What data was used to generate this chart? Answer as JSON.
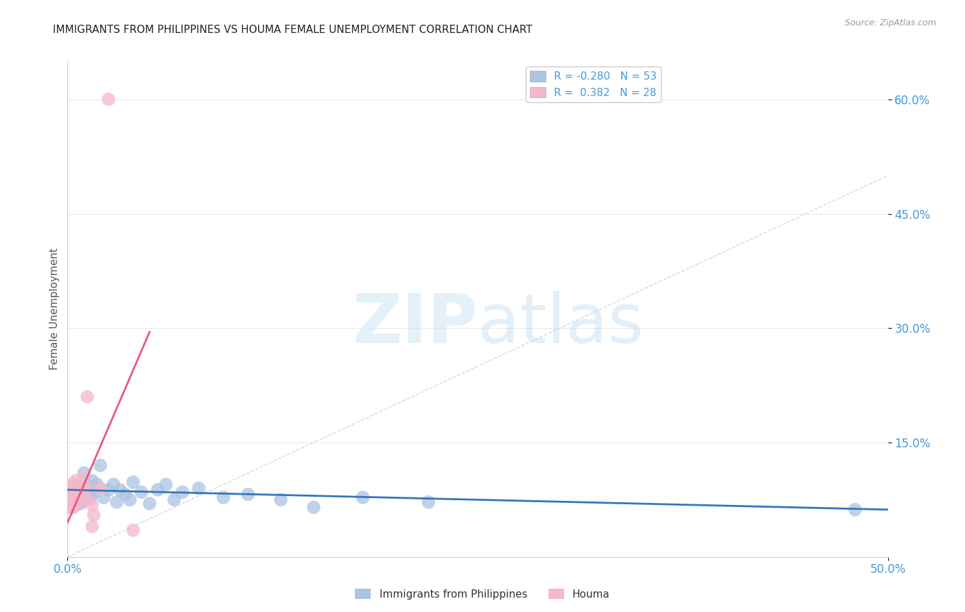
{
  "title": "IMMIGRANTS FROM PHILIPPINES VS HOUMA FEMALE UNEMPLOYMENT CORRELATION CHART",
  "source": "Source: ZipAtlas.com",
  "ylabel": "Female Unemployment",
  "xlim": [
    0.0,
    0.5
  ],
  "ylim": [
    0.0,
    0.65
  ],
  "yticks": [
    0.15,
    0.3,
    0.45,
    0.6
  ],
  "ytick_labels": [
    "15.0%",
    "30.0%",
    "45.0%",
    "60.0%"
  ],
  "xtick_labels": [
    "0.0%",
    "50.0%"
  ],
  "xtick_positions": [
    0.0,
    0.5
  ],
  "blue_R": -0.28,
  "blue_N": 53,
  "pink_R": 0.382,
  "pink_N": 28,
  "blue_color": "#aac4e2",
  "pink_color": "#f5b8cb",
  "blue_line_color": "#3377bb",
  "pink_line_color": "#e85580",
  "diagonal_color": "#d0d0d0",
  "background_color": "#ffffff",
  "title_color": "#222222",
  "tick_color": "#4499dd",
  "watermark_color": "#cce4f5",
  "legend_label_blue": "Immigrants from Philippines",
  "legend_label_pink": "Houma",
  "blue_points_x": [
    0.001,
    0.001,
    0.002,
    0.002,
    0.002,
    0.003,
    0.003,
    0.003,
    0.004,
    0.004,
    0.004,
    0.005,
    0.005,
    0.005,
    0.006,
    0.006,
    0.007,
    0.007,
    0.008,
    0.008,
    0.009,
    0.009,
    0.01,
    0.011,
    0.012,
    0.013,
    0.014,
    0.015,
    0.016,
    0.018,
    0.02,
    0.022,
    0.025,
    0.028,
    0.03,
    0.032,
    0.035,
    0.038,
    0.04,
    0.045,
    0.05,
    0.055,
    0.06,
    0.065,
    0.07,
    0.08,
    0.095,
    0.11,
    0.13,
    0.15,
    0.18,
    0.22,
    0.48
  ],
  "blue_points_y": [
    0.075,
    0.065,
    0.08,
    0.07,
    0.09,
    0.065,
    0.075,
    0.085,
    0.07,
    0.08,
    0.095,
    0.068,
    0.078,
    0.088,
    0.072,
    0.082,
    0.076,
    0.086,
    0.07,
    0.08,
    0.074,
    0.084,
    0.11,
    0.095,
    0.09,
    0.082,
    0.078,
    0.1,
    0.085,
    0.095,
    0.12,
    0.078,
    0.088,
    0.095,
    0.072,
    0.088,
    0.082,
    0.075,
    0.098,
    0.085,
    0.07,
    0.088,
    0.095,
    0.075,
    0.085,
    0.09,
    0.078,
    0.082,
    0.075,
    0.065,
    0.078,
    0.072,
    0.062
  ],
  "pink_points_x": [
    0.001,
    0.001,
    0.002,
    0.002,
    0.003,
    0.003,
    0.003,
    0.004,
    0.004,
    0.005,
    0.005,
    0.005,
    0.006,
    0.006,
    0.007,
    0.007,
    0.008,
    0.009,
    0.01,
    0.011,
    0.012,
    0.013,
    0.015,
    0.015,
    0.016,
    0.02,
    0.025,
    0.04
  ],
  "pink_points_y": [
    0.075,
    0.09,
    0.07,
    0.085,
    0.065,
    0.08,
    0.095,
    0.075,
    0.088,
    0.068,
    0.082,
    0.1,
    0.078,
    0.09,
    0.072,
    0.086,
    0.095,
    0.085,
    0.105,
    0.092,
    0.21,
    0.075,
    0.068,
    0.04,
    0.055,
    0.09,
    0.6,
    0.035
  ],
  "blue_trend_x": [
    0.0,
    0.5
  ],
  "blue_trend_y": [
    0.088,
    0.062
  ],
  "pink_trend_x": [
    0.0,
    0.05
  ],
  "pink_trend_y": [
    0.045,
    0.295
  ]
}
